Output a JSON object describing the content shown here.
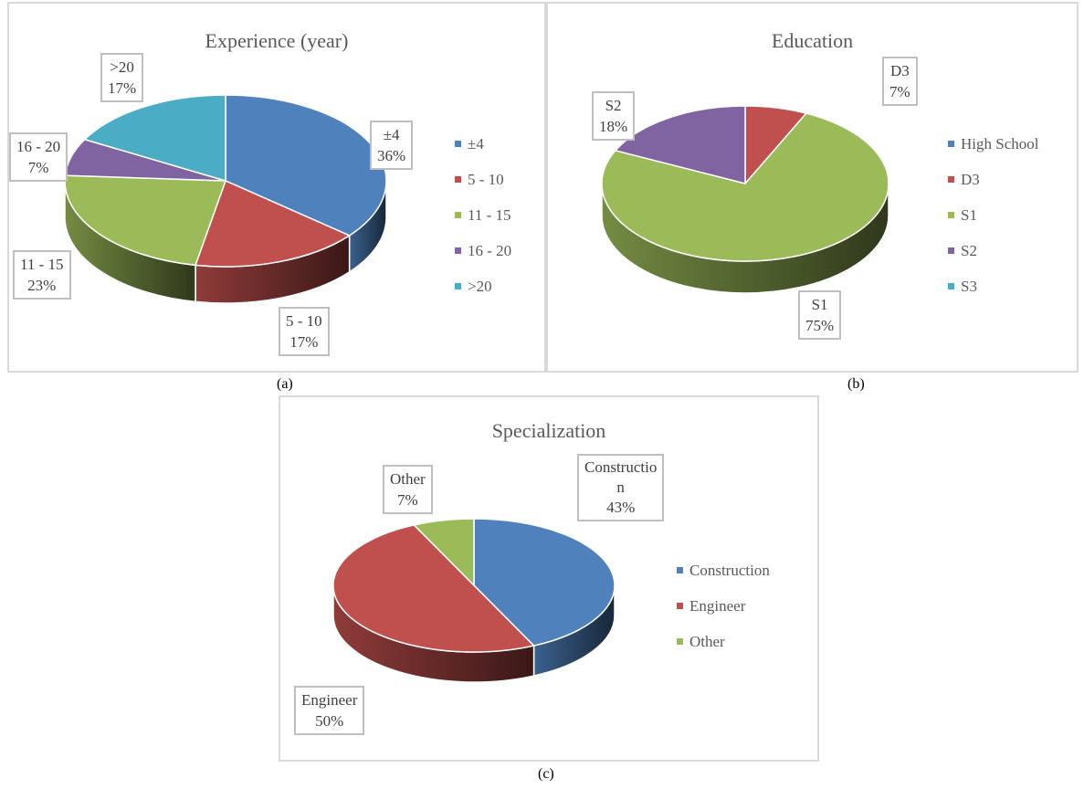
{
  "colors": {
    "blue": "#4f81bd",
    "red": "#c0504d",
    "green": "#9bbb59",
    "purple": "#8064a2",
    "teal": "#4bacc6"
  },
  "captions": {
    "a": "(a)",
    "b": "(b)",
    "c": "(c)"
  },
  "chart_data": [
    {
      "type": "pie",
      "title": "Experience (year)",
      "categories": [
        "±4",
        "5 - 10",
        "11 - 15",
        "16 - 20",
        ">20"
      ],
      "values": [
        36,
        17,
        23,
        7,
        17
      ],
      "colors": [
        "#4f81bd",
        "#c0504d",
        "#9bbb59",
        "#8064a2",
        "#4bacc6"
      ],
      "labels": [
        {
          "name": "±4",
          "value": "36%"
        },
        {
          "name": "5 - 10",
          "value": "17%"
        },
        {
          "name": "11 - 15",
          "value": "23%"
        },
        {
          "name": "16 - 20",
          "value": "7%"
        },
        {
          "name": ">20",
          "value": "17%"
        }
      ],
      "legend": [
        "±4",
        "5 - 10",
        "11 - 15",
        "16 - 20",
        ">20"
      ],
      "legend_position": "right"
    },
    {
      "type": "pie",
      "title": "Education",
      "categories": [
        "High School",
        "D3",
        "S1",
        "S2",
        "S3"
      ],
      "values": [
        0,
        7,
        75,
        18,
        0
      ],
      "colors": [
        "#4f81bd",
        "#c0504d",
        "#9bbb59",
        "#8064a2",
        "#4bacc6"
      ],
      "labels": [
        {
          "name": "D3",
          "value": "7%"
        },
        {
          "name": "S1",
          "value": "75%"
        },
        {
          "name": "S2",
          "value": "18%"
        }
      ],
      "legend": [
        "High School",
        "D3",
        "S1",
        "S2",
        "S3"
      ],
      "legend_position": "right"
    },
    {
      "type": "pie",
      "title": "Specialization",
      "categories": [
        "Construction",
        "Engineer",
        "Other"
      ],
      "values": [
        43,
        50,
        7
      ],
      "colors": [
        "#4f81bd",
        "#c0504d",
        "#9bbb59"
      ],
      "labels": [
        {
          "name": "Constructio\nn",
          "value": "43%"
        },
        {
          "name": "Engineer",
          "value": "50%"
        },
        {
          "name": "Other",
          "value": "7%"
        }
      ],
      "legend": [
        "Construction",
        "Engineer",
        "Other"
      ],
      "legend_position": "right"
    }
  ]
}
